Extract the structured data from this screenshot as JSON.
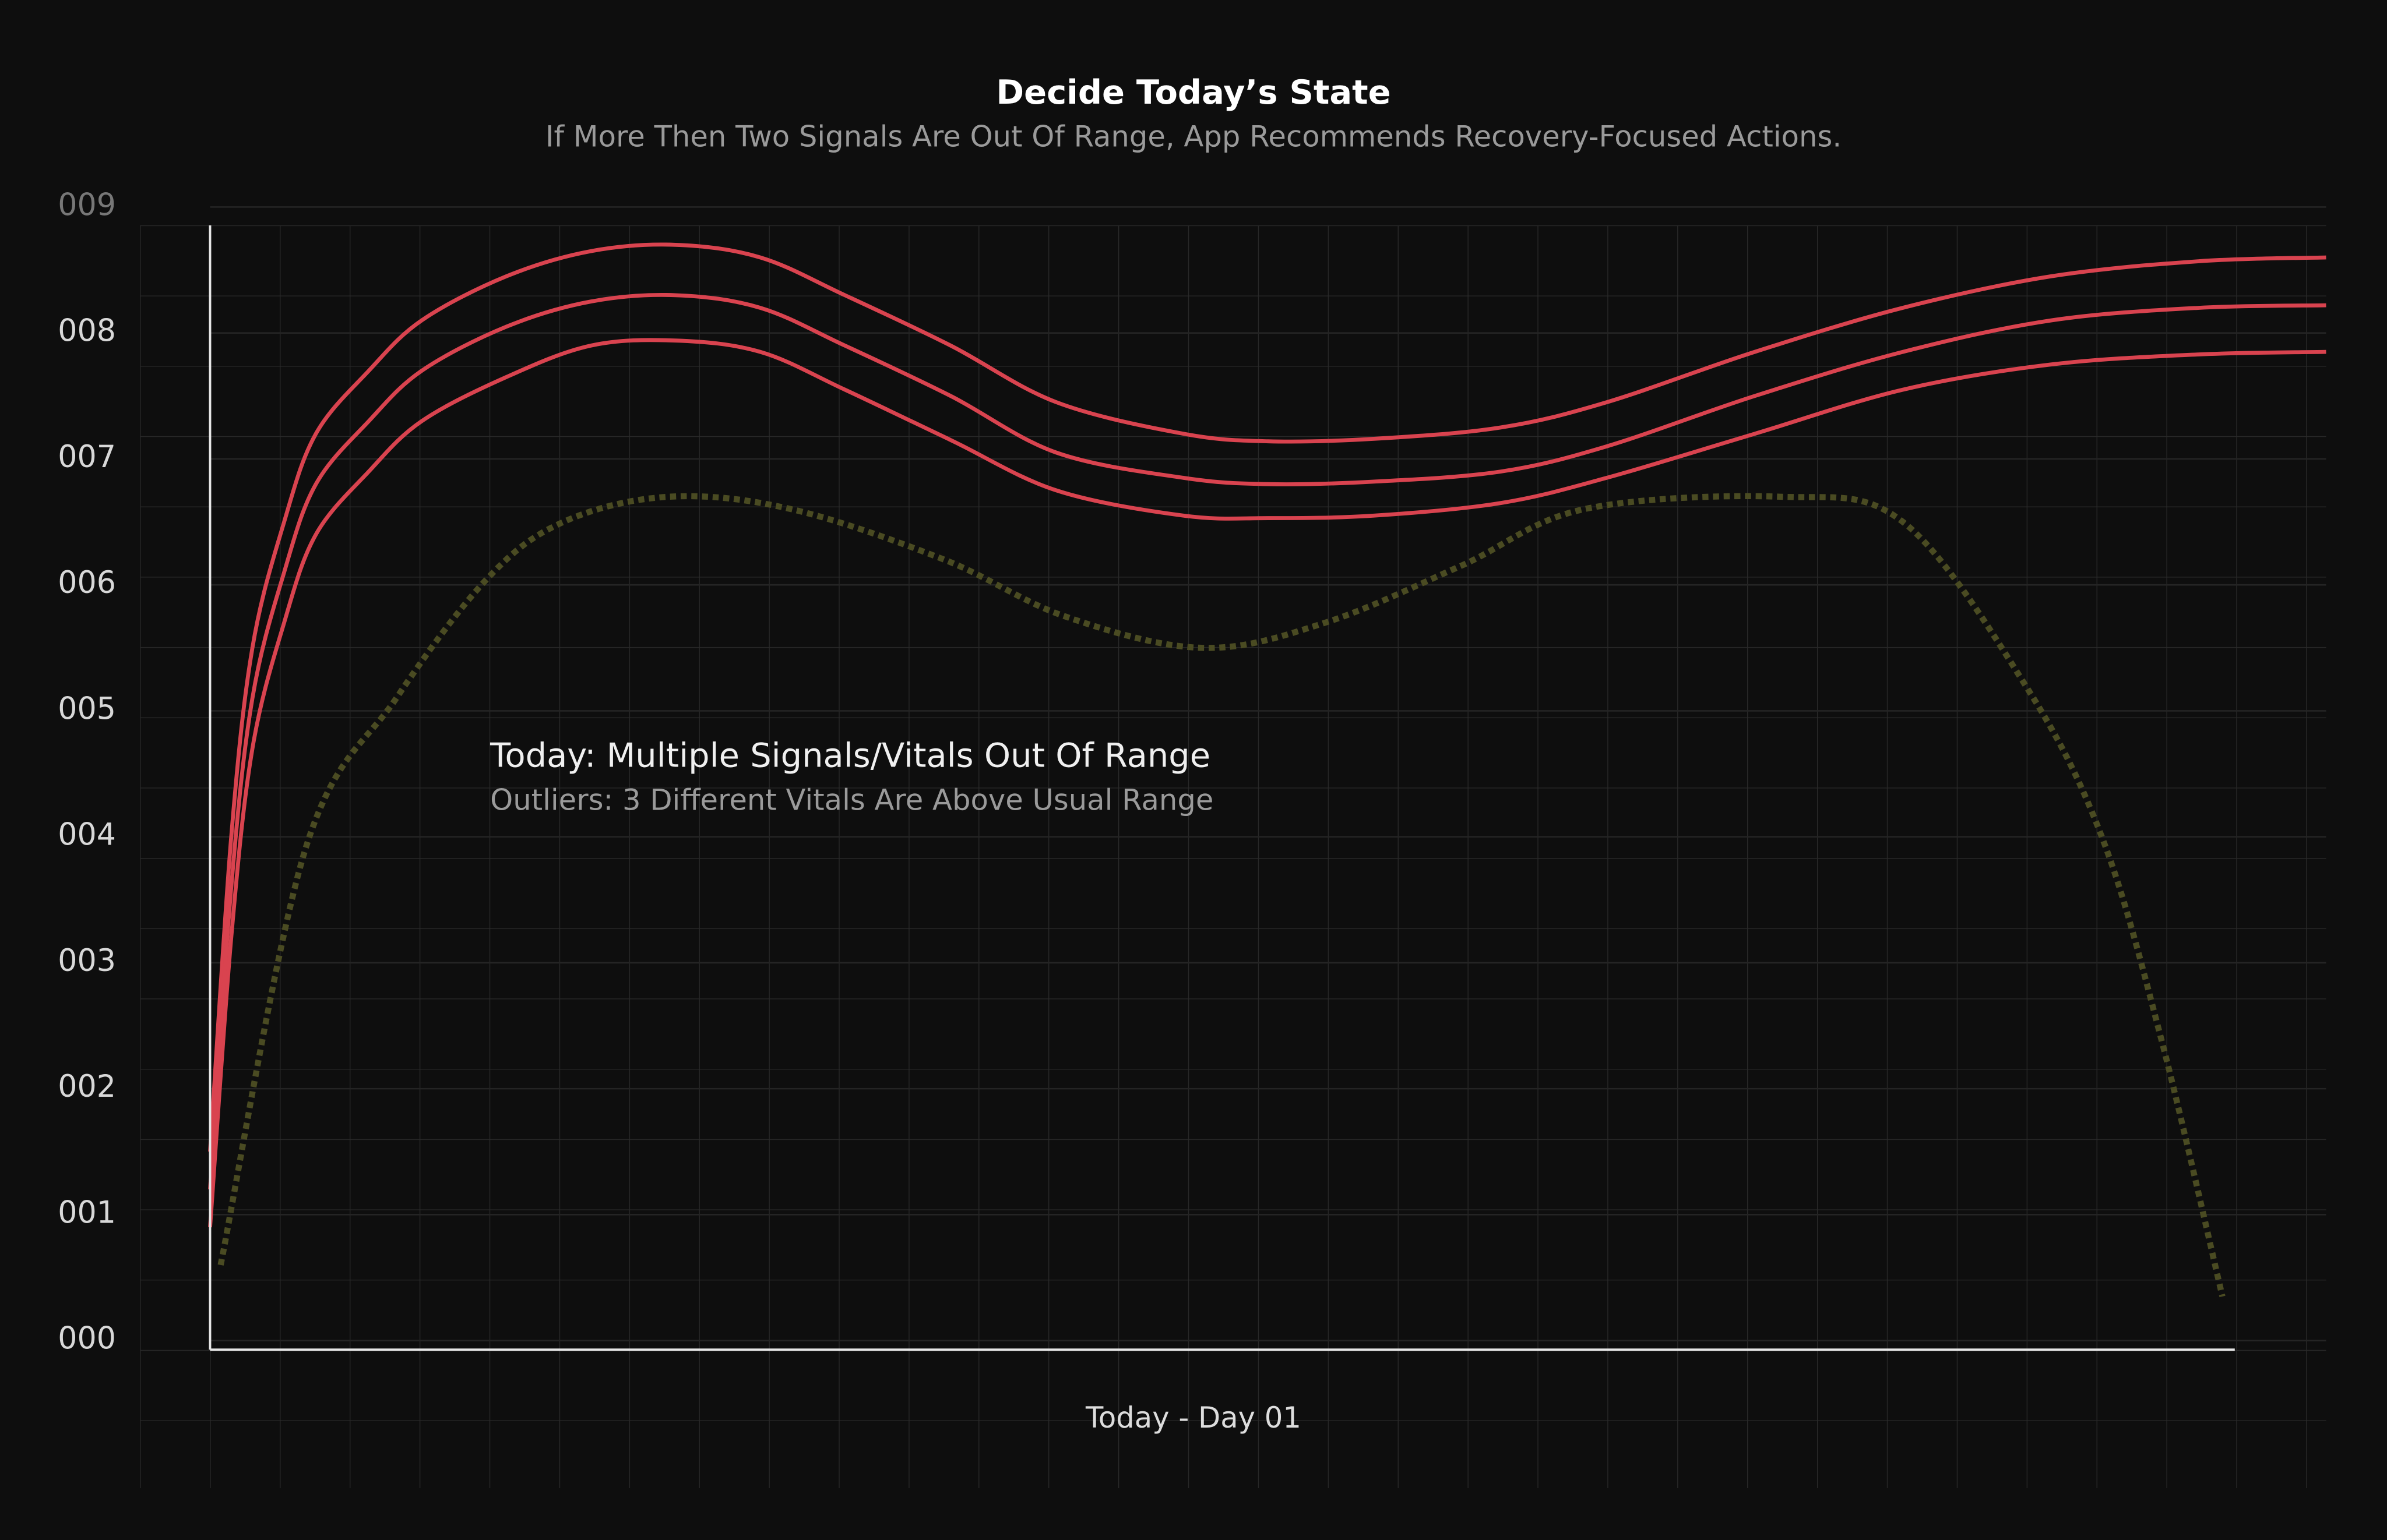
{
  "chart_data": {
    "type": "line",
    "title": "Decide Today’s State",
    "subtitle": "If More Then Two Signals Are Out Of Range, App Recommends Recovery-Focused Actions.",
    "annotation": {
      "title": "Today: Multiple Signals/Vitals Out Of Range",
      "subtitle": "Outliers: 3 Different Vitals Are Above Usual Range"
    },
    "x_label": "Today - Day 01",
    "xlim": [
      0,
      100
    ],
    "ylim": [
      0,
      9
    ],
    "yticks": [
      {
        "value": 0,
        "label": "000"
      },
      {
        "value": 1,
        "label": "001"
      },
      {
        "value": 2,
        "label": "002"
      },
      {
        "value": 3,
        "label": "003"
      },
      {
        "value": 4,
        "label": "004"
      },
      {
        "value": 5,
        "label": "005"
      },
      {
        "value": 6,
        "label": "006"
      },
      {
        "value": 7,
        "label": "007"
      },
      {
        "value": 8,
        "label": "008"
      },
      {
        "value": 9,
        "label": "009"
      }
    ],
    "grid": true,
    "series": [
      {
        "color": "#d9434f",
        "style": "solid",
        "x": [
          0,
          1,
          2,
          3.5,
          5,
          7.5,
          10,
          14,
          18,
          22,
          26,
          30,
          35,
          40,
          46,
          50,
          55,
          61,
          66,
          73,
          80,
          87,
          94,
          100
        ],
        "values": [
          1.5,
          4.0,
          5.5,
          6.5,
          7.2,
          7.7,
          8.1,
          8.45,
          8.65,
          8.7,
          8.6,
          8.3,
          7.9,
          7.45,
          7.2,
          7.14,
          7.16,
          7.25,
          7.45,
          7.85,
          8.2,
          8.45,
          8.57,
          8.6
        ]
      },
      {
        "color": "#d9434f",
        "style": "solid",
        "x": [
          0,
          1,
          2,
          3.5,
          5,
          7.5,
          10,
          14,
          18,
          22,
          26,
          30,
          35,
          40,
          46,
          50,
          55,
          61,
          66,
          73,
          80,
          87,
          94,
          100
        ],
        "values": [
          1.2,
          3.6,
          5.1,
          6.1,
          6.8,
          7.3,
          7.7,
          8.05,
          8.25,
          8.3,
          8.2,
          7.9,
          7.5,
          7.05,
          6.85,
          6.8,
          6.82,
          6.9,
          7.1,
          7.5,
          7.85,
          8.1,
          8.2,
          8.22
        ]
      },
      {
        "color": "#d9434f",
        "style": "solid",
        "x": [
          0,
          1,
          2,
          3.5,
          5,
          7.5,
          10,
          14,
          18,
          22,
          26,
          30,
          35,
          40,
          46,
          50,
          55,
          61,
          66,
          73,
          80,
          87,
          94,
          100
        ],
        "values": [
          0.9,
          3.2,
          4.7,
          5.7,
          6.4,
          6.9,
          7.3,
          7.65,
          7.9,
          7.94,
          7.85,
          7.55,
          7.15,
          6.75,
          6.55,
          6.53,
          6.55,
          6.65,
          6.85,
          7.2,
          7.55,
          7.75,
          7.83,
          7.85
        ]
      },
      {
        "color": "#4a4b22",
        "style": "dashed",
        "x": [
          0.5,
          4.5,
          8.8,
          13.1,
          16.7,
          21.7,
          27.5,
          34.7,
          40.4,
          46.9,
          52.7,
          59.1,
          64.9,
          74.2,
          80,
          85.8,
          89.4,
          92.2,
          95.1
        ],
        "values": [
          0.6,
          3.9,
          5.1,
          6.05,
          6.5,
          6.7,
          6.6,
          6.2,
          5.75,
          5.5,
          5.7,
          6.15,
          6.6,
          6.7,
          6.5,
          5.2,
          4.0,
          2.4,
          0.35
        ]
      }
    ]
  }
}
